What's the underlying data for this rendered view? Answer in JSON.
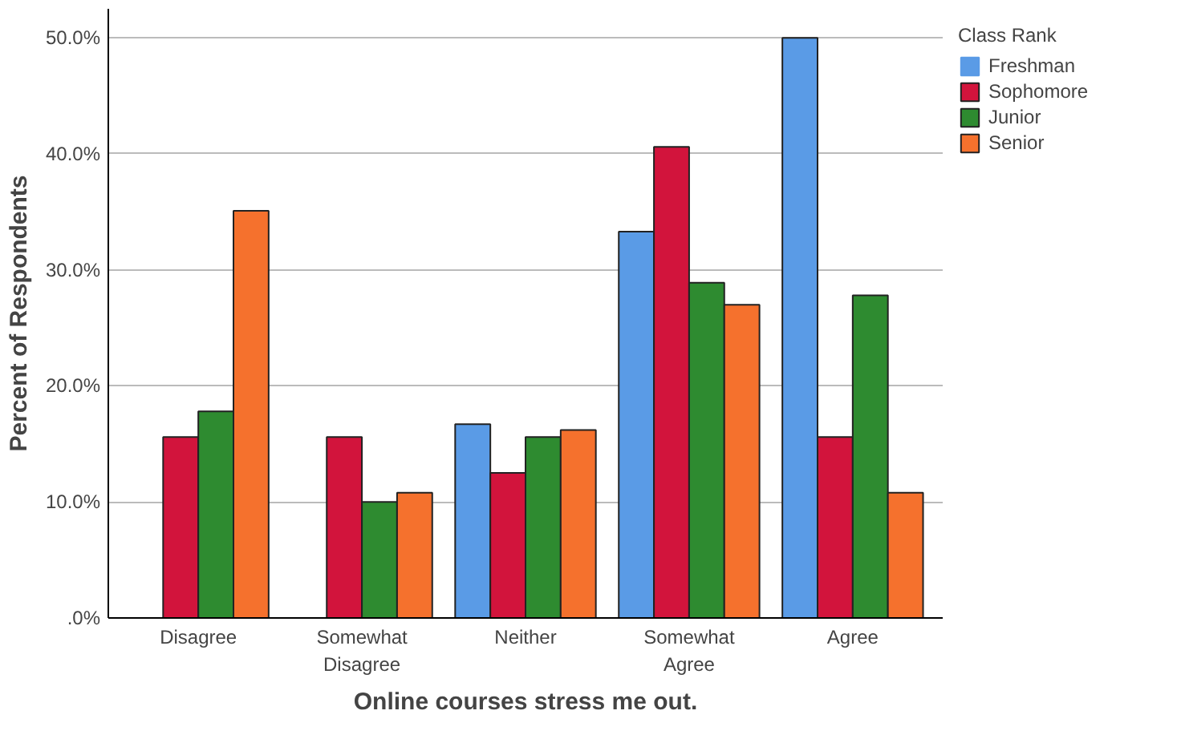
{
  "chart_data": {
    "type": "bar",
    "xlabel": "Online courses stress me out.",
    "ylabel": "Percent of Respondents",
    "legend_title": "Class Rank",
    "categories": [
      "Disagree",
      "Somewhat\nDisagree",
      "Neither",
      "Somewhat\nAgree",
      "Agree"
    ],
    "series": [
      {
        "name": "Freshman",
        "color": "#5a9be6",
        "values": [
          0,
          0,
          16.7,
          33.3,
          50.0
        ]
      },
      {
        "name": "Sophomore",
        "color": "#d2143c",
        "values": [
          15.6,
          15.6,
          12.5,
          40.6,
          15.6
        ]
      },
      {
        "name": "Junior",
        "color": "#2e8b30",
        "values": [
          17.8,
          10.0,
          15.6,
          28.9,
          27.8
        ]
      },
      {
        "name": "Senior",
        "color": "#f5712d",
        "values": [
          35.1,
          10.8,
          16.2,
          27.0,
          10.8
        ]
      }
    ],
    "ylim": [
      0,
      52.5
    ],
    "yticks": [
      {
        "value": 0,
        "label": ".0%"
      },
      {
        "value": 10,
        "label": "10.0%"
      },
      {
        "value": 20,
        "label": "20.0%"
      },
      {
        "value": 30,
        "label": "30.0%"
      },
      {
        "value": 40,
        "label": "40.0%"
      },
      {
        "value": 50,
        "label": "50.0%"
      }
    ],
    "grid": "y",
    "legend": "right"
  }
}
